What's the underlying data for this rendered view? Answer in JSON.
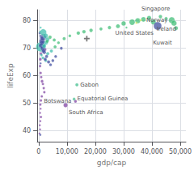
{
  "chart_data": {
    "type": "scatter",
    "xlabel": "gdp/cap",
    "ylabel": "lifeExp",
    "xlim": [
      -500,
      52000
    ],
    "ylim": [
      36,
      84
    ],
    "xticks": [
      0,
      {
        "value": 10000,
        "label": "10,000"
      },
      {
        "value": 20000,
        "label": "20,000"
      },
      {
        "value": 30000,
        "label": "30,000"
      },
      {
        "value": 40000,
        "label": "40,000"
      },
      {
        "value": 50000,
        "label": "50,000"
      }
    ],
    "yticks": [
      40,
      50,
      60,
      70,
      80
    ],
    "grid": true,
    "series": [
      {
        "type": "scatter",
        "marker": "circle",
        "x": [
          47000,
          40500,
          47800,
          42000,
          48500,
          13500,
          12500,
          13000,
          9500,
          800,
          1100,
          1300,
          1800,
          2200,
          800,
          600,
          500,
          700,
          900,
          1200,
          1500,
          1800,
          2000,
          1100,
          800,
          600,
          700,
          500,
          800,
          600,
          400,
          500,
          300,
          600,
          1000,
          1500,
          2500,
          3200,
          4500,
          5800,
          7000,
          9000,
          11000,
          14000,
          16000,
          18500,
          22000,
          25000,
          28000,
          30000,
          33000,
          35000,
          37000,
          39000,
          43000,
          45000,
          1200,
          1600,
          900,
          1400,
          2000,
          2800,
          3500,
          4200,
          400,
          600,
          700,
          700,
          500,
          31000,
          34500,
          36000,
          1600,
          2400,
          3100,
          2600,
          1900,
          4000,
          3000,
          5500,
          1700,
          2300,
          5000,
          6000,
          8000
        ],
        "values": [
          80.2,
          79.5,
          79.1,
          78.1,
          77.3,
          56.7,
          51.5,
          50.7,
          49.3,
          70.5,
          73.5,
          72.0,
          71.0,
          69.5,
          68.0,
          66.0,
          63.5,
          61.0,
          59.5,
          58.0,
          57.0,
          55.5,
          54.0,
          52.5,
          51.0,
          49.5,
          48.0,
          46.5,
          45.0,
          43.5,
          42.0,
          40.5,
          39.0,
          38.5,
          67.5,
          66.5,
          65.5,
          68.0,
          69.0,
          70.5,
          72.0,
          73.5,
          74.5,
          75.5,
          76.0,
          76.5,
          77.0,
          77.5,
          78.0,
          79.0,
          79.5,
          80.0,
          80.5,
          81.0,
          81.5,
          80.8,
          72.5,
          74.0,
          71.0,
          70.0,
          68.5,
          67.0,
          65.0,
          64.0,
          75.5,
          74.5,
          64.5,
          77.5,
          76.0,
          77.5,
          79.2,
          80.2,
          75.8,
          74.5,
          73.2,
          72.0,
          70.8,
          74.0,
          72.5,
          73.0,
          69.0,
          66.0,
          65.5,
          67.0,
          70.0
        ],
        "sizes": [
          18,
          12,
          14,
          30,
          8,
          5,
          4,
          4,
          9,
          45,
          6,
          8,
          7,
          5,
          4,
          4,
          3,
          3,
          3,
          4,
          3,
          3,
          3,
          3,
          3,
          3,
          2,
          2,
          3,
          2,
          2,
          2,
          2,
          2,
          3,
          4,
          4,
          5,
          5,
          5,
          4,
          5,
          4,
          6,
          6,
          6,
          5,
          6,
          8,
          10,
          16,
          14,
          11,
          9,
          6,
          5,
          16,
          18,
          12,
          9,
          6,
          5,
          5,
          4,
          3,
          2,
          2,
          2,
          2,
          2,
          2,
          2,
          20,
          12,
          8,
          8,
          7,
          6,
          5,
          5,
          7,
          5,
          4,
          4,
          4
        ],
        "colors": [
          "#3dbc74",
          "#3dbc74",
          "#3dbc74",
          "#3c4a9e",
          "#3dbc74",
          "#3dbc8a",
          "#3dbc8a",
          "#7b3fa0",
          "#7b3fa0",
          "#3abcaa",
          "#3c4a9e",
          "#3c4a9e",
          "#3abcaa",
          "#7b3fa0",
          "#7b3fa0",
          "#7b3fa0",
          "#7b3fa0",
          "#7b3fa0",
          "#7b3fa0",
          "#7b3fa0",
          "#7b3fa0",
          "#7b3fa0",
          "#7b3fa0",
          "#7b3fa0",
          "#7b3fa0",
          "#7b3fa0",
          "#7b3fa0",
          "#7b3fa0",
          "#7b3fa0",
          "#7b3fa0",
          "#7b3fa0",
          "#7b3fa0",
          "#7b3fa0",
          "#3c4a9e",
          "#3abcaa",
          "#3abcaa",
          "#3abcaa",
          "#3abcaa",
          "#3abcaa",
          "#3dbc74",
          "#3dbc74",
          "#3dbc74",
          "#3dbc74",
          "#3dbc74",
          "#3dbc74",
          "#3dbc74",
          "#3dbc74",
          "#3dbc74",
          "#3dbc74",
          "#3dbc74",
          "#3dbc74",
          "#3dbc74",
          "#3dbc74",
          "#3dbc74",
          "#3dbc74",
          "#3dbc74",
          "#3c4a9e",
          "#3c4a9e",
          "#3c4a9e",
          "#3c4a9e",
          "#3c4a9e",
          "#3c4a9e",
          "#3c4a9e",
          "#3c4a9e",
          "#3c4a9e",
          "#3c4a9e",
          "#3c4a9e",
          "#3abcaa",
          "#3abcaa",
          "#3dbc74",
          "#d4e64e",
          "#d4e64e",
          "#3abcaa",
          "#3abcaa",
          "#3abcaa",
          "#3abcaa",
          "#3abcaa",
          "#3dbc74",
          "#3dbc74",
          "#3dbc74",
          "#3c4a9e",
          "#3c4a9e",
          "#3c4a9e",
          "#3c4a9e",
          "#3c4a9e"
        ]
      },
      {
        "type": "scatter",
        "marker": "cross",
        "color": "#777777",
        "x": [
          17000
        ],
        "values": [
          73.5
        ]
      }
    ],
    "annotations": [
      {
        "text": "Norway",
        "x": 47000,
        "y": 80.2
      },
      {
        "text": "Ireland",
        "x": 40500,
        "y": 79.5
      },
      {
        "text": "Singapore",
        "x": 47800,
        "y": 79.1
      },
      {
        "text": "United States",
        "x": 42000,
        "y": 78.1
      },
      {
        "text": "Kuwait",
        "x": 48500,
        "y": 77.3
      },
      {
        "text": "Gabon",
        "x": 13500,
        "y": 56.7
      },
      {
        "text": "Equatorial Guinea",
        "x": 12500,
        "y": 51.5
      },
      {
        "text": "Botswana",
        "x": 13000,
        "y": 50.7
      },
      {
        "text": "South Africa",
        "x": 9500,
        "y": 49.3
      }
    ]
  }
}
